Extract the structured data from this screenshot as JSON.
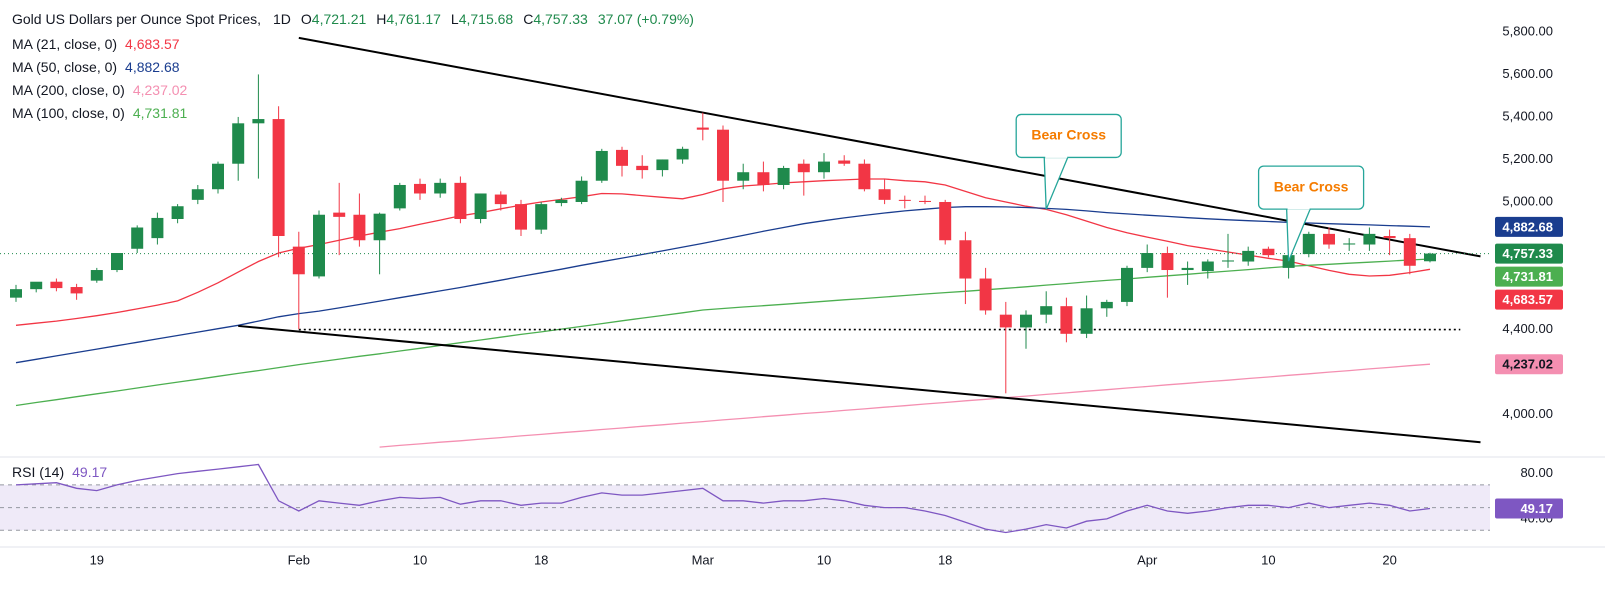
{
  "chart_data": [
    {
      "type": "candlestick",
      "title": "Gold US Dollars per Ounce Spot Prices,",
      "interval": "1D",
      "ohlc_labels": [
        {
          "key": "O",
          "label": "4,721.21"
        },
        {
          "key": "H",
          "label": "4,761.17"
        },
        {
          "key": "L",
          "label": "4,715.68"
        },
        {
          "key": "C",
          "label": "4,757.33"
        }
      ],
      "change_label": "37.07 (+0.79%)",
      "categories": [
        null,
        null,
        null,
        null,
        "19",
        null,
        null,
        null,
        null,
        null,
        null,
        null,
        null,
        null,
        "Feb",
        null,
        null,
        null,
        null,
        null,
        "10",
        null,
        null,
        null,
        null,
        null,
        "18",
        null,
        null,
        null,
        null,
        null,
        null,
        null,
        "Mar",
        null,
        null,
        null,
        null,
        null,
        "10",
        null,
        null,
        null,
        null,
        null,
        "18",
        null,
        null,
        null,
        null,
        null,
        null,
        null,
        null,
        null,
        "Apr",
        null,
        null,
        null,
        null,
        null,
        "10",
        null,
        null,
        null,
        null,
        null,
        "20",
        null,
        null
      ],
      "open": [
        4550,
        4590,
        4625,
        4600,
        4630,
        4680,
        4780,
        4830,
        4920,
        5010,
        5060,
        5180,
        5370,
        5390,
        4790,
        4650,
        4950,
        4940,
        4820,
        4970,
        5085,
        5040,
        5090,
        4920,
        5035,
        4990,
        4870,
        4995,
        5000,
        5100,
        5245,
        5170,
        5150,
        5200,
        5350,
        5340,
        5100,
        5140,
        5080,
        5180,
        5140,
        5195,
        5180,
        5060,
        5010,
        5005,
        5000,
        4820,
        4640,
        4470,
        4410,
        4470,
        4510,
        4380,
        4500,
        4530,
        4690,
        4760,
        4680,
        4675,
        4720,
        4720,
        4780,
        4690,
        4755,
        4850,
        4800,
        4800,
        4840,
        4830,
        4721.21
      ],
      "high": [
        4610,
        4620,
        4640,
        4615,
        4690,
        4760,
        4890,
        4950,
        4990,
        5080,
        5190,
        5400,
        5600,
        5450,
        4860,
        4960,
        5090,
        5040,
        4950,
        5090,
        5110,
        5110,
        5120,
        5040,
        5050,
        5010,
        5000,
        5020,
        5120,
        5250,
        5260,
        5220,
        5200,
        5260,
        5420,
        5360,
        5180,
        5190,
        5170,
        5200,
        5230,
        5220,
        5200,
        5110,
        5030,
        5030,
        5010,
        4860,
        4690,
        4530,
        4490,
        4580,
        4550,
        4560,
        4540,
        4700,
        4800,
        4790,
        4720,
        4730,
        4850,
        4790,
        4790,
        4820,
        4860,
        4880,
        4830,
        4880,
        4870,
        4850,
        4761.17
      ],
      "low": [
        4530,
        4575,
        4580,
        4540,
        4620,
        4670,
        4760,
        4800,
        4900,
        4990,
        5040,
        5100,
        5110,
        4740,
        4402,
        4640,
        4750,
        4790,
        4660,
        4960,
        5010,
        5020,
        4900,
        4900,
        4960,
        4840,
        4850,
        4980,
        4990,
        5090,
        5120,
        5110,
        5120,
        5180,
        5290,
        5000,
        5060,
        5050,
        5060,
        5030,
        5110,
        5170,
        5050,
        4990,
        4970,
        4990,
        4800,
        4520,
        4470,
        4100,
        4310,
        4430,
        4340,
        4360,
        4460,
        4510,
        4670,
        4550,
        4610,
        4640,
        4690,
        4700,
        4740,
        4640,
        4740,
        4780,
        4770,
        4770,
        4750,
        4660,
        4715.68
      ],
      "close": [
        4590,
        4625,
        4595,
        4570,
        4680,
        4760,
        4880,
        4925,
        4980,
        5060,
        5180,
        5370,
        5390,
        4840,
        4660,
        4940,
        4930,
        4820,
        4945,
        5080,
        5040,
        5090,
        4920,
        5040,
        4990,
        4870,
        4990,
        5010,
        5100,
        5240,
        5170,
        5150,
        5200,
        5250,
        5340,
        5100,
        5140,
        5080,
        5160,
        5140,
        5190,
        5180,
        5060,
        5010,
        5005,
        5000,
        4820,
        4640,
        4490,
        4410,
        4470,
        4510,
        4380,
        4500,
        4530,
        4690,
        4760,
        4680,
        4690,
        4720,
        4725,
        4770,
        4750,
        4750,
        4850,
        4800,
        4805,
        4850,
        4830,
        4700,
        4757.33
      ],
      "up_color": "#1f8a4c",
      "down_color": "#f23645",
      "last_label": "4,757.33",
      "series": [
        {
          "name": "MA (21, close, 0)",
          "color": "#f23645",
          "value_label": "4,683.57",
          "values": [
            4420,
            4430,
            4440,
            4452,
            4465,
            4480,
            4497,
            4515,
            4535,
            4575,
            4620,
            4670,
            4720,
            4760,
            4782,
            4800,
            4820,
            4840,
            4858,
            4875,
            4895,
            4915,
            4935,
            4950,
            4968,
            4985,
            5000,
            5012,
            5025,
            5040,
            5038,
            5030,
            5022,
            5015,
            5035,
            5062,
            5075,
            5082,
            5090,
            5095,
            5100,
            5104,
            5108,
            5108,
            5100,
            5095,
            5080,
            5050,
            5020,
            5000,
            4980,
            4965,
            4940,
            4910,
            4880,
            4855,
            4835,
            4815,
            4795,
            4780,
            4765,
            4750,
            4735,
            4722,
            4700,
            4678,
            4660,
            4652,
            4655,
            4668,
            4683.57
          ]
        },
        {
          "name": "MA (50, close, 0)",
          "color": "#1a3d8f",
          "value_label": "4,882.68",
          "values": [
            4244,
            4260,
            4276,
            4292,
            4308,
            4324,
            4340,
            4356,
            4372,
            4388,
            4404,
            4420,
            4440,
            4460,
            4475,
            4487,
            4502,
            4518,
            4534,
            4550,
            4566,
            4582,
            4598,
            4615,
            4632,
            4650,
            4667,
            4684,
            4702,
            4719,
            4736,
            4753,
            4770,
            4788,
            4805,
            4824,
            4843,
            4862,
            4880,
            4898,
            4912,
            4925,
            4937,
            4948,
            4958,
            4966,
            4974,
            4978,
            4978,
            4977,
            4974,
            4970,
            4965,
            4958,
            4950,
            4944,
            4938,
            4932,
            4926,
            4921,
            4916,
            4912,
            4908,
            4904,
            4901,
            4898,
            4895,
            4892,
            4889,
            4886,
            4882.68
          ]
        },
        {
          "name": "MA (200, close, 0)",
          "color": "#f48fb1",
          "value_label": "4,237.02",
          "values": [
            null,
            null,
            null,
            null,
            null,
            null,
            null,
            null,
            null,
            null,
            null,
            null,
            null,
            null,
            null,
            null,
            null,
            null,
            3847,
            3855,
            3862,
            3870,
            3877,
            3885,
            3892,
            3900,
            3907,
            3915,
            3922,
            3930,
            3937,
            3945,
            3952,
            3960,
            3967,
            3975,
            3982,
            3990,
            3997,
            4005,
            4012,
            4020,
            4027,
            4035,
            4042,
            4050,
            4057,
            4065,
            4072,
            4080,
            4087,
            4095,
            4102,
            4110,
            4117,
            4125,
            4132,
            4140,
            4147,
            4155,
            4162,
            4170,
            4177,
            4185,
            4192,
            4200,
            4207,
            4215,
            4222,
            4230,
            4237.02
          ]
        },
        {
          "name": "MA (100, close, 0)",
          "color": "#4caf50",
          "value_label": "4,731.81",
          "values": [
            4043,
            4057,
            4070,
            4084,
            4098,
            4111,
            4125,
            4139,
            4153,
            4166,
            4180,
            4194,
            4207,
            4221,
            4235,
            4248,
            4261,
            4274,
            4286,
            4299,
            4312,
            4325,
            4338,
            4351,
            4364,
            4377,
            4389,
            4402,
            4415,
            4428,
            4441,
            4454,
            4466,
            4479,
            4492,
            4499,
            4506,
            4512,
            4519,
            4526,
            4533,
            4540,
            4546,
            4553,
            4560,
            4567,
            4574,
            4580,
            4587,
            4594,
            4601,
            4609,
            4616,
            4624,
            4631,
            4638,
            4646,
            4653,
            4660,
            4668,
            4675,
            4682,
            4690,
            4697,
            4702,
            4707,
            4712,
            4717,
            4722,
            4727,
            4731.81
          ]
        }
      ],
      "ylim": [
        3810,
        5950
      ],
      "yticks": [
        {
          "value": 4000,
          "label": "4,000.00"
        },
        {
          "value": 4400,
          "label": "4,400.00"
        },
        {
          "value": 5000,
          "label": "5,000.00"
        },
        {
          "value": 5200,
          "label": "5,200.00"
        },
        {
          "value": 5400,
          "label": "5,400.00"
        },
        {
          "value": 5600,
          "label": "5,600.00"
        },
        {
          "value": 5800,
          "label": "5,800.00"
        }
      ],
      "grid": false,
      "trendlines": [
        {
          "x": [
            14,
            72.5
          ],
          "y": [
            5772,
            4744
          ]
        },
        {
          "x": [
            11,
            72.5
          ],
          "y": [
            4417,
            3870
          ]
        }
      ],
      "levels": [
        {
          "y": 4400,
          "x": [
            14,
            71.5
          ]
        }
      ],
      "annotations": [
        {
          "text": "Bear Cross",
          "x": 51,
          "y": 4965
        },
        {
          "text": "Bear Cross",
          "x": 63,
          "y": 4722
        }
      ]
    },
    {
      "type": "line",
      "title": "RSI (14)",
      "value_label": "49.17",
      "color": "#7e57c2",
      "band_fill": "#efeaf8",
      "values": [
        70,
        71,
        72,
        67,
        65,
        70,
        74,
        77,
        80,
        82,
        84,
        86,
        88,
        56,
        47,
        56,
        54,
        52,
        56,
        59,
        58,
        59,
        53,
        56,
        56,
        52,
        54,
        54,
        59,
        63,
        61,
        61,
        63,
        65,
        67,
        56,
        56,
        54,
        56,
        56,
        58,
        56,
        52,
        50,
        50,
        47,
        43,
        37,
        31,
        28,
        31,
        35,
        32,
        38,
        40,
        47,
        52,
        47,
        45,
        47,
        50,
        52,
        52,
        50,
        54,
        50,
        52,
        54,
        52,
        47,
        49.17
      ],
      "ylim": [
        17,
        92
      ],
      "yticks": [
        {
          "value": 40,
          "label": "40.00"
        },
        {
          "value": 80,
          "label": "80.00"
        }
      ],
      "bands": [
        70,
        50,
        30
      ]
    }
  ]
}
